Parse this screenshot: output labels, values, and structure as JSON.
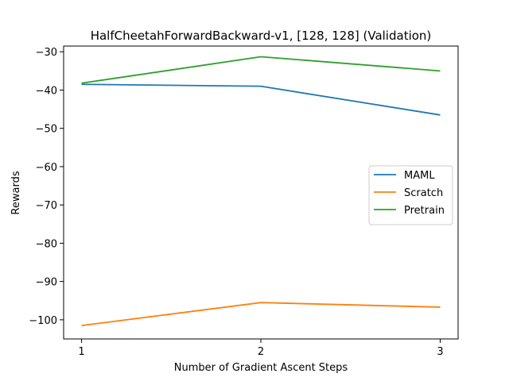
{
  "chart_data": {
    "type": "line",
    "title": "HalfCheetahForwardBackward-v1, [128, 128] (Validation)",
    "xlabel": "Number of Gradient Ascent Steps",
    "ylabel": "Rewards",
    "x": [
      1,
      2,
      3
    ],
    "xticks": [
      1,
      2,
      3
    ],
    "xlim": [
      0.9,
      3.1
    ],
    "yticks": [
      -30,
      -40,
      -50,
      -60,
      -70,
      -80,
      -90,
      -100
    ],
    "ylim": [
      -105,
      -28.5
    ],
    "grid": false,
    "legend_position": "center-right",
    "series": [
      {
        "name": "MAML",
        "values": [
          -38.5,
          -39.0,
          -46.5
        ],
        "color": "#1f77b4"
      },
      {
        "name": "Scratch",
        "values": [
          -101.5,
          -95.5,
          -96.7
        ],
        "color": "#ff7f0e"
      },
      {
        "name": "Pretrain",
        "values": [
          -38.2,
          -31.3,
          -35.0
        ],
        "color": "#2ca02c"
      }
    ]
  }
}
